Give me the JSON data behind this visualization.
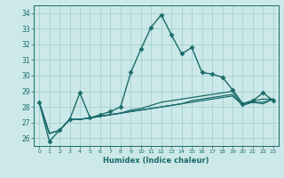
{
  "title": "",
  "xlabel": "Humidex (Indice chaleur)",
  "ylabel": "",
  "bg_color": "#cce8e8",
  "grid_color": "#9ecece",
  "line_color": "#1a6b6b",
  "xlim": [
    -0.5,
    23.5
  ],
  "ylim": [
    25.5,
    34.5
  ],
  "yticks": [
    26,
    27,
    28,
    29,
    30,
    31,
    32,
    33,
    34
  ],
  "xticks": [
    0,
    1,
    2,
    3,
    4,
    5,
    6,
    7,
    8,
    9,
    10,
    11,
    12,
    13,
    14,
    15,
    16,
    17,
    18,
    19,
    20,
    21,
    22,
    23
  ],
  "lines": [
    {
      "x": [
        0,
        1,
        2,
        3,
        4,
        5,
        6,
        7,
        8,
        9,
        10,
        11,
        12,
        13,
        14,
        15,
        16,
        17,
        18,
        19,
        20,
        21,
        22,
        23
      ],
      "y": [
        28.3,
        25.8,
        26.5,
        27.2,
        28.9,
        27.3,
        27.5,
        27.7,
        28.0,
        30.2,
        31.7,
        33.1,
        33.9,
        32.6,
        31.4,
        31.8,
        30.2,
        30.1,
        29.9,
        29.1,
        28.2,
        28.4,
        28.9,
        28.4
      ],
      "marker": "D",
      "markersize": 2.5,
      "linewidth": 1.0,
      "has_marker": true
    },
    {
      "x": [
        0,
        1,
        2,
        3,
        4,
        5,
        6,
        7,
        8,
        9,
        10,
        11,
        12,
        13,
        14,
        15,
        16,
        17,
        18,
        19,
        20,
        21,
        22,
        23
      ],
      "y": [
        28.3,
        26.3,
        26.5,
        27.2,
        27.2,
        27.3,
        27.4,
        27.5,
        27.6,
        27.8,
        27.9,
        28.1,
        28.3,
        28.4,
        28.5,
        28.6,
        28.7,
        28.8,
        28.9,
        29.0,
        28.2,
        28.4,
        28.5,
        28.5
      ],
      "marker": null,
      "markersize": 0,
      "linewidth": 0.9,
      "has_marker": false
    },
    {
      "x": [
        0,
        1,
        2,
        3,
        4,
        5,
        6,
        7,
        8,
        9,
        10,
        11,
        12,
        13,
        14,
        15,
        16,
        17,
        18,
        19,
        20,
        21,
        22,
        23
      ],
      "y": [
        28.3,
        26.3,
        26.5,
        27.2,
        27.2,
        27.3,
        27.4,
        27.5,
        27.6,
        27.7,
        27.8,
        27.9,
        28.0,
        28.1,
        28.2,
        28.4,
        28.5,
        28.6,
        28.7,
        28.8,
        28.2,
        28.3,
        28.3,
        28.5
      ],
      "marker": null,
      "markersize": 0,
      "linewidth": 0.9,
      "has_marker": false
    },
    {
      "x": [
        0,
        1,
        2,
        3,
        4,
        5,
        6,
        7,
        8,
        9,
        10,
        11,
        12,
        13,
        14,
        15,
        16,
        17,
        18,
        19,
        20,
        21,
        22,
        23
      ],
      "y": [
        28.3,
        26.3,
        26.5,
        27.2,
        27.2,
        27.3,
        27.4,
        27.5,
        27.6,
        27.7,
        27.8,
        27.9,
        28.0,
        28.1,
        28.2,
        28.3,
        28.4,
        28.5,
        28.6,
        28.7,
        28.1,
        28.3,
        28.2,
        28.5
      ],
      "marker": null,
      "markersize": 0,
      "linewidth": 0.9,
      "has_marker": false
    }
  ]
}
